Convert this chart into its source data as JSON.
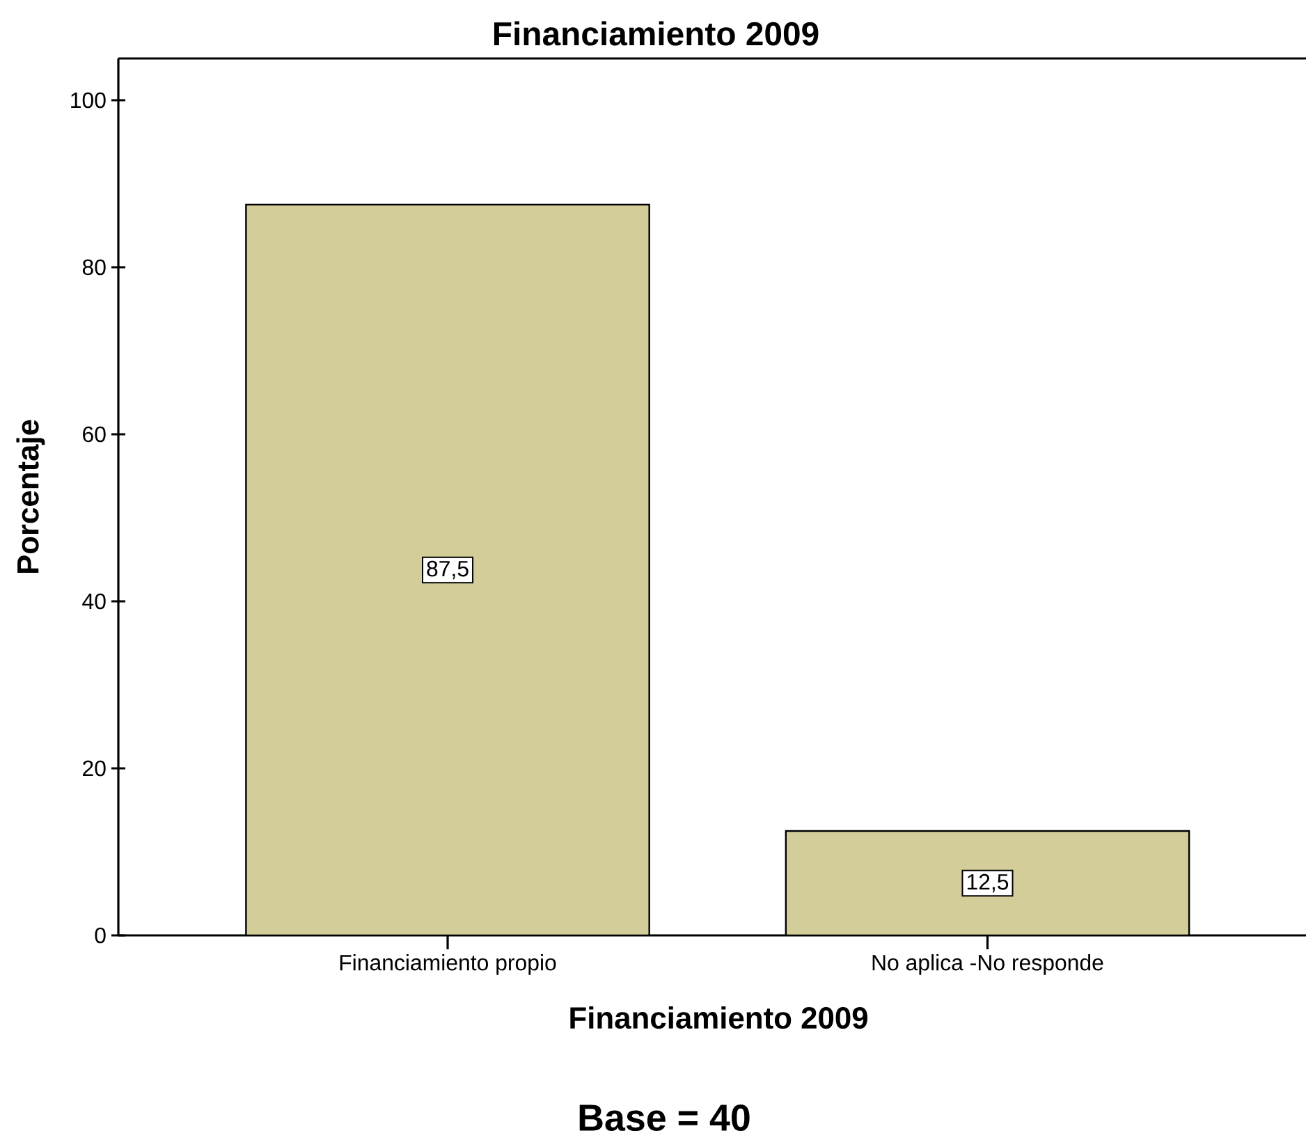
{
  "chart_data": {
    "type": "bar",
    "title": "Financiamiento 2009",
    "xlabel": "Financiamiento 2009",
    "ylabel": "Porcentaje",
    "categories": [
      "Financiamiento propio",
      "No aplica -No responde"
    ],
    "values": [
      87.5,
      12.5
    ],
    "value_labels": [
      "87,5",
      "12,5"
    ],
    "color": "#d3ce99",
    "ylim": [
      0,
      105
    ],
    "yticks": [
      0,
      20,
      40,
      60,
      80,
      100
    ],
    "annotations": [
      "Base = 40"
    ]
  }
}
